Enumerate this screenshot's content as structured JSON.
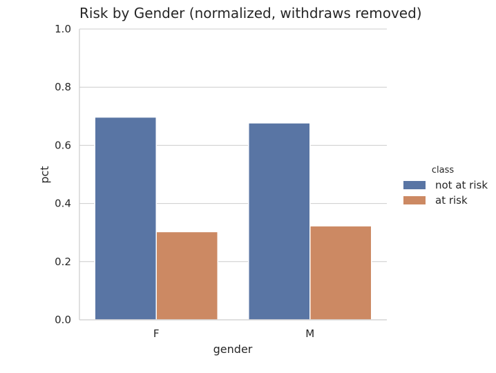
{
  "chart_data": {
    "type": "bar",
    "title": "Risk by Gender (normalized, withdraws removed)",
    "xlabel": "gender",
    "ylabel": "pct",
    "categories": [
      "F",
      "M"
    ],
    "series": [
      {
        "name": "not at risk",
        "values": [
          0.697,
          0.677
        ],
        "color": "#5975a4"
      },
      {
        "name": "at risk",
        "values": [
          0.303,
          0.323
        ],
        "color": "#cc8963"
      }
    ],
    "ylim": [
      0,
      1.0
    ],
    "yticks": [
      "0.0",
      "0.2",
      "0.4",
      "0.6",
      "0.8",
      "1.0"
    ],
    "grid": true,
    "legend": {
      "title": "class",
      "placement": "right"
    }
  }
}
